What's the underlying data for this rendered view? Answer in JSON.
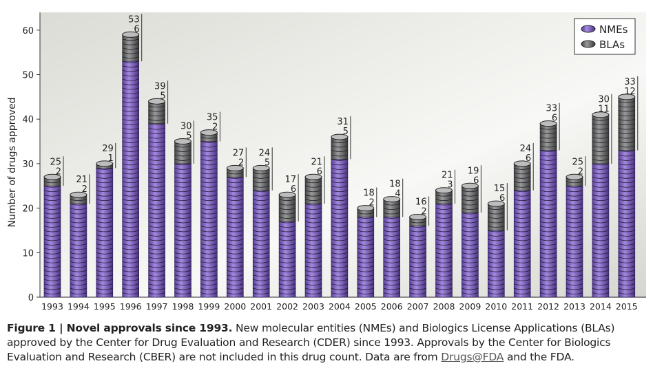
{
  "chart_data": {
    "type": "bar",
    "stacked": true,
    "ylabel": "Number of drugs approved",
    "xlabel": "",
    "ylim": [
      0,
      64
    ],
    "yticks": [
      0,
      10,
      20,
      30,
      40,
      50,
      60
    ],
    "grid": false,
    "legend_position": "top-right",
    "categories": [
      "1993",
      "1994",
      "1995",
      "1996",
      "1997",
      "1998",
      "1999",
      "2000",
      "2001",
      "2002",
      "2003",
      "2004",
      "2005",
      "2006",
      "2007",
      "2008",
      "2009",
      "2010",
      "2011",
      "2012",
      "2013",
      "2014",
      "2015"
    ],
    "series": [
      {
        "name": "NMEs",
        "color": "#8a6fc8",
        "values": [
          25,
          21,
          29,
          53,
          39,
          30,
          35,
          27,
          24,
          17,
          21,
          31,
          18,
          18,
          16,
          21,
          19,
          15,
          24,
          33,
          25,
          30,
          33
        ]
      },
      {
        "name": "BLAs",
        "color": "#6b6b6b",
        "values": [
          2,
          2,
          1,
          6,
          5,
          5,
          2,
          2,
          5,
          6,
          6,
          5,
          2,
          4,
          2,
          3,
          6,
          6,
          6,
          6,
          2,
          11,
          12
        ]
      }
    ]
  },
  "caption": {
    "label": "Figure 1 | ",
    "title": "Novel approvals since 1993.",
    "text1": " New molecular entities (NMEs) and Biologics License Applications (BLAs) approved by the Center for Drug Evaluation and Research (CDER) since 1993. Approvals by the Center for Biologics Evaluation and Research (CBER) are not included in this drug count. Data are from ",
    "link": "Drugs@FDA",
    "text2": " and the FDA."
  }
}
